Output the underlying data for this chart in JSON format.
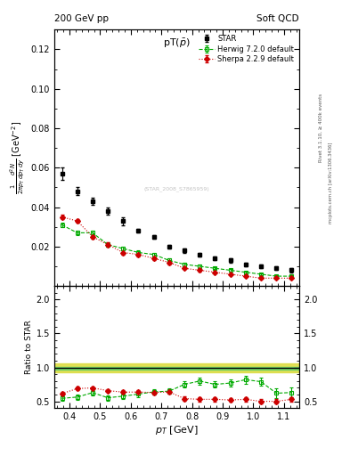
{
  "title_top": "200 GeV pp",
  "title_right": "Soft QCD",
  "plot_title": "pT($\\bar{p}$)",
  "ylabel_main": "$\\frac{1}{2\\pi p_T}\\frac{d^2N}{dp_T dy}$ [GeV$^{-2}$]",
  "ylabel_ratio": "Ratio to STAR",
  "xlabel": "$p_T$ [GeV]",
  "rivet_label": "Rivet 3.1.10, ≥ 400k events",
  "arxiv_label": "mcplots.cern.ch [arXiv:1306.3436]",
  "watermark": "(STAR_2008_S7865959)",
  "star_x": [
    0.375,
    0.425,
    0.475,
    0.525,
    0.575,
    0.625,
    0.675,
    0.725,
    0.775,
    0.825,
    0.875,
    0.925,
    0.975,
    1.025,
    1.075,
    1.125
  ],
  "star_y": [
    0.057,
    0.048,
    0.043,
    0.038,
    0.033,
    0.028,
    0.025,
    0.02,
    0.018,
    0.016,
    0.014,
    0.013,
    0.011,
    0.01,
    0.009,
    0.008
  ],
  "star_yerr": [
    0.003,
    0.002,
    0.002,
    0.002,
    0.002,
    0.001,
    0.001,
    0.001,
    0.001,
    0.001,
    0.001,
    0.001,
    0.001,
    0.001,
    0.001,
    0.001
  ],
  "herwig_x": [
    0.375,
    0.425,
    0.475,
    0.525,
    0.575,
    0.625,
    0.675,
    0.725,
    0.775,
    0.825,
    0.875,
    0.925,
    0.975,
    1.025,
    1.075,
    1.125
  ],
  "herwig_y": [
    0.031,
    0.027,
    0.027,
    0.021,
    0.019,
    0.017,
    0.016,
    0.013,
    0.011,
    0.01,
    0.009,
    0.008,
    0.007,
    0.006,
    0.005,
    0.005
  ],
  "herwig_yerr": [
    0.001,
    0.001,
    0.001,
    0.001,
    0.001,
    0.001,
    0.001,
    0.001,
    0.001,
    0.001,
    0.0005,
    0.0005,
    0.0005,
    0.0005,
    0.0005,
    0.0005
  ],
  "sherpa_x": [
    0.375,
    0.425,
    0.475,
    0.525,
    0.575,
    0.625,
    0.675,
    0.725,
    0.775,
    0.825,
    0.875,
    0.925,
    0.975,
    1.025,
    1.075,
    1.125
  ],
  "sherpa_y": [
    0.035,
    0.033,
    0.025,
    0.021,
    0.017,
    0.016,
    0.014,
    0.012,
    0.009,
    0.008,
    0.007,
    0.006,
    0.005,
    0.004,
    0.004,
    0.004
  ],
  "sherpa_yerr": [
    0.001,
    0.001,
    0.001,
    0.001,
    0.001,
    0.001,
    0.001,
    0.001,
    0.0005,
    0.0005,
    0.0005,
    0.0005,
    0.0005,
    0.0005,
    0.0005,
    0.0005
  ],
  "herwig_ratio": [
    0.544,
    0.563,
    0.628,
    0.553,
    0.576,
    0.607,
    0.64,
    0.65,
    0.75,
    0.8,
    0.75,
    0.77,
    0.82,
    0.79,
    0.62,
    0.63
  ],
  "herwig_ratio_err": [
    0.04,
    0.04,
    0.04,
    0.04,
    0.04,
    0.04,
    0.04,
    0.04,
    0.05,
    0.05,
    0.05,
    0.05,
    0.06,
    0.06,
    0.07,
    0.07
  ],
  "sherpa_ratio": [
    0.614,
    0.688,
    0.698,
    0.658,
    0.636,
    0.637,
    0.63,
    0.64,
    0.54,
    0.53,
    0.53,
    0.52,
    0.53,
    0.5,
    0.5,
    0.53
  ],
  "sherpa_ratio_err": [
    0.025,
    0.025,
    0.025,
    0.025,
    0.025,
    0.025,
    0.025,
    0.025,
    0.03,
    0.03,
    0.03,
    0.03,
    0.035,
    0.035,
    0.035,
    0.035
  ],
  "ref_band_inner_lo": 0.965,
  "ref_band_inner_hi": 1.01,
  "ref_band_outer_lo": 0.93,
  "ref_band_outer_hi": 1.06,
  "xlim": [
    0.35,
    1.15
  ],
  "ylim_main": [
    0,
    0.13
  ],
  "ylim_ratio": [
    0.4,
    2.2
  ],
  "star_color": "#000000",
  "herwig_color": "#00aa00",
  "sherpa_color": "#cc0000",
  "ref_inner_color": "#66cc66",
  "ref_outer_color": "#dddd44"
}
